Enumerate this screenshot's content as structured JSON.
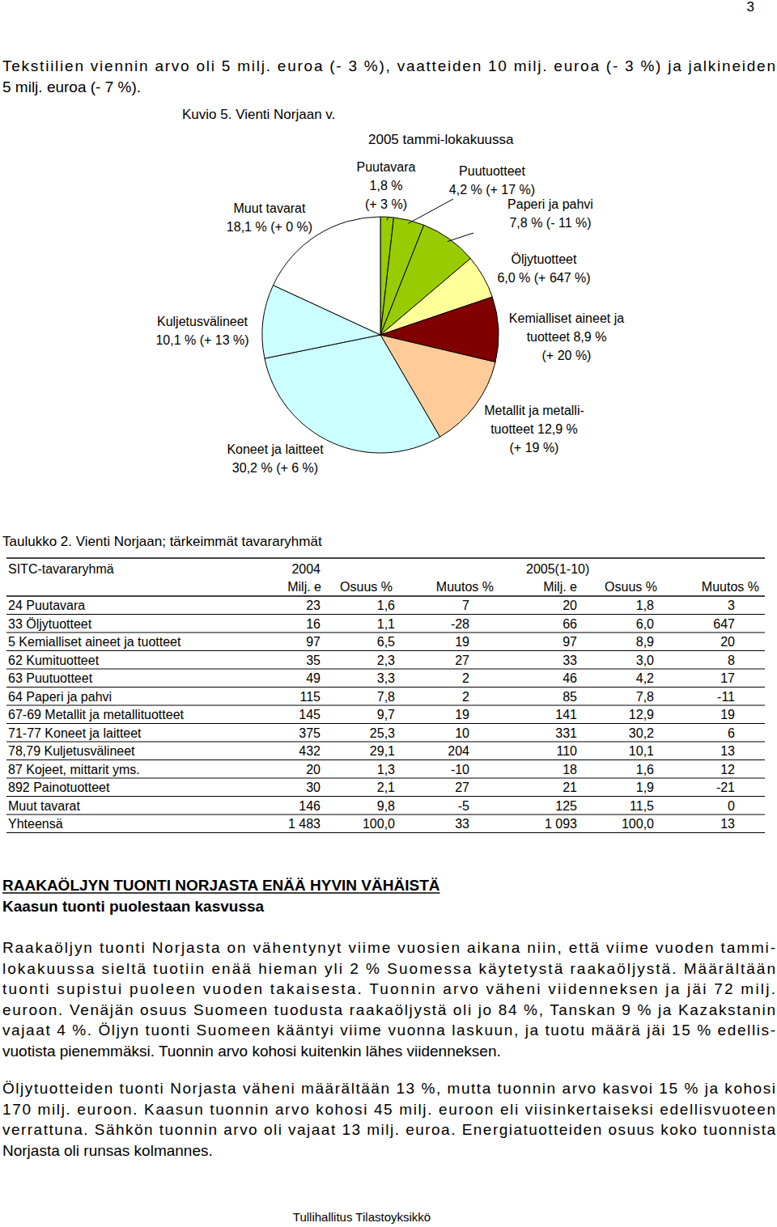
{
  "page_number": "3",
  "intro": [
    "Tekstiilien viennin arvo oli 5 milj. euroa (- 3 %), vaatteiden 10 milj. euroa (- 3 %) ja jalkineiden",
    "5 milj. euroa (- 7 %)."
  ],
  "chart_data": {
    "type": "pie",
    "title": "Kuvio 5. Vienti Norjaan v. 2005 tammi-lokakuussa",
    "categories": [
      "Puutavara",
      "Puutuotteet",
      "Paperi ja pahvi",
      "Öljytuotteet",
      "Kemialliset aineet ja\ntuotteet",
      "Metallit ja metalli-\ntuotteet",
      "Koneet ja laitteet",
      "Kuljetusvälineet",
      "Muut tavarat"
    ],
    "values": [
      1.8,
      4.2,
      7.8,
      6.0,
      8.9,
      12.9,
      30.2,
      10.1,
      18.1
    ],
    "value_labels": [
      "1,8 %",
      "4,2 %",
      "7,8 %",
      "6,0 %",
      "8,9 %",
      "12,9 %",
      "30,2 %",
      "10,1 %",
      "18,1 %"
    ],
    "change_labels": [
      "(+ 3 %)",
      "(+ 17 %)",
      "(- 11 %)",
      "(+ 647 %)",
      "(+ 20 %)",
      "(+ 19 %)",
      "(+ 6 %)",
      "(+ 13 %)",
      "(+ 0 %)"
    ],
    "colors": [
      "#99cc00",
      "#99cc00",
      "#99cc00",
      "#ffff99",
      "#800000",
      "#ffcc99",
      "#ccffff",
      "#ccffff",
      "#ffffff"
    ],
    "data_labels": true
  },
  "table": {
    "caption": "Taulukko 2. Vienti Norjaan; tärkeimmät tavararyhmät",
    "columns": [
      "SITC-tavararyhmä",
      "2004",
      "2005(1-10)"
    ],
    "subcolumns": [
      "Milj. e",
      "Osuus %",
      "Muutos %",
      "Milj. e",
      "Osuus %",
      "Muutos %"
    ],
    "rows": [
      [
        "24 Puutavara",
        "23",
        "1,6",
        "7",
        "20",
        "1,8",
        "3"
      ],
      [
        "33 Öljytuotteet",
        "16",
        "1,1",
        "-28",
        "66",
        "6,0",
        "647"
      ],
      [
        "5 Kemialliset aineet ja tuotteet",
        "97",
        "6,5",
        "19",
        "97",
        "8,9",
        "20"
      ],
      [
        "62 Kumituotteet",
        "35",
        "2,3",
        "27",
        "33",
        "3,0",
        "8"
      ],
      [
        "63 Puutuotteet",
        "49",
        "3,3",
        "2",
        "46",
        "4,2",
        "17"
      ],
      [
        "64 Paperi ja pahvi",
        "115",
        "7,8",
        "2",
        "85",
        "7,8",
        "-11"
      ],
      [
        "67-69 Metallit ja metallituotteet",
        "145",
        "9,7",
        "19",
        "141",
        "12,9",
        "19"
      ],
      [
        "71-77 Koneet ja laitteet",
        "375",
        "25,3",
        "10",
        "331",
        "30,2",
        "6"
      ],
      [
        "78,79 Kuljetusvälineet",
        "432",
        "29,1",
        "204",
        "110",
        "10,1",
        "13"
      ],
      [
        "87 Kojeet, mittarit yms.",
        "20",
        "1,3",
        "-10",
        "18",
        "1,6",
        "12"
      ],
      [
        "892 Painotuotteet",
        "30",
        "2,1",
        "27",
        "21",
        "1,9",
        "-21"
      ],
      [
        "Muut tavarat",
        "146",
        "9,8",
        "-5",
        "125",
        "11,5",
        "0"
      ],
      [
        "Yhteensä",
        "1 483",
        "100,0",
        "33",
        "1 093",
        "100,0",
        "13"
      ]
    ]
  },
  "heading": "RAAKAÖLJYN TUONTI NORJASTA ENÄÄ HYVIN VÄHÄISTÄ",
  "subheading": "Kaasun tuonti puolestaan kasvussa",
  "paragraphs": [
    [
      "Raakaöljyn tuonti Norjasta on vähentynyt viime vuosien aikana niin, että viime vuoden tammi-",
      "lokakuussa sieltä tuotiin enää hieman yli 2 % Suomessa käytetystä raakaöljystä. Määrältään",
      "tuonti supistui puoleen vuoden takaisesta. Tuonnin arvo väheni viidenneksen ja jäi 72 milj.",
      "euroon. Venäjän osuus Suomeen tuodusta raakaöljystä oli jo 84 %, Tanskan 9 % ja Kazakstanin",
      "vajaat 4 %. Öljyn tuonti Suomeen kääntyi viime vuonna laskuun, ja tuotu määrä jäi 15 % edellis-",
      "vuotista pienemmäksi. Tuonnin arvo kohosi kuitenkin lähes viidenneksen."
    ],
    [
      "Öljytuotteiden tuonti Norjasta väheni määrältään 13 %, mutta tuonnin arvo kasvoi 15 % ja kohosi",
      "170 milj. euroon. Kaasun tuonnin arvo kohosi 45 milj. euroon eli viisinkertaiseksi edellisvuoteen",
      "verrattuna. Sähkön tuonnin arvo oli vajaat 13 milj. euroa. Energiatuotteiden osuus koko tuonnista",
      "Norjasta oli runsas kolmannes."
    ]
  ],
  "footer": "Tullihallitus Tilastoyksikkö"
}
